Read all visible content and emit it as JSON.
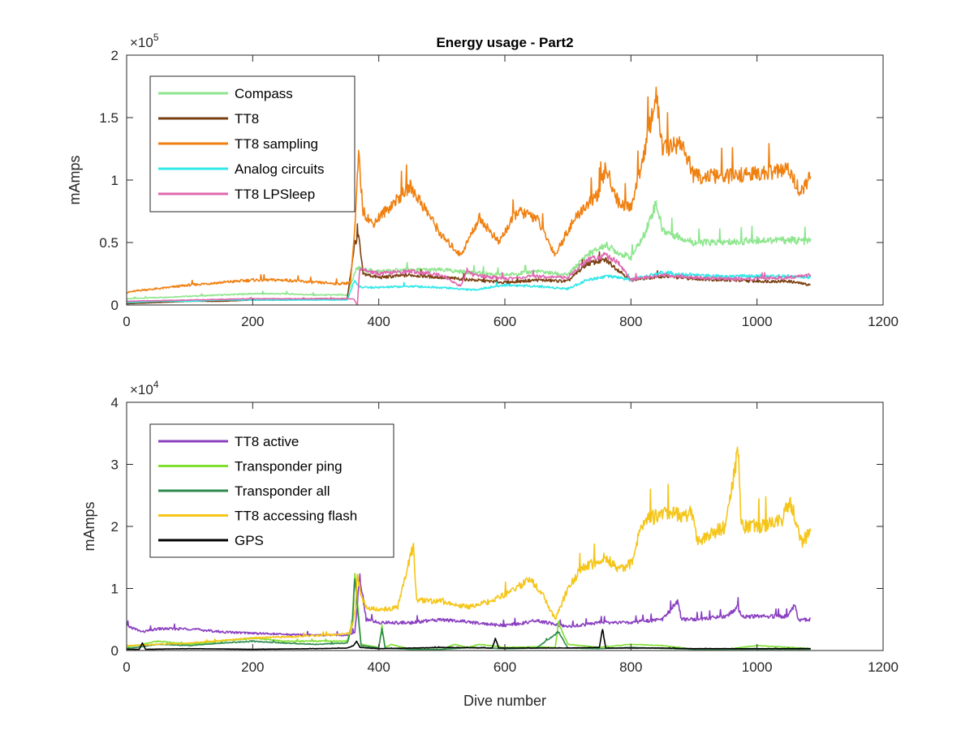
{
  "chart_data": [
    {
      "type": "line",
      "title": "Energy usage - Part2",
      "xlabel": "",
      "ylabel": "mAmps",
      "exponent_label": "×10",
      "exponent_power": "5",
      "scale": 100000,
      "xlim": [
        0,
        1200
      ],
      "ylim": [
        0,
        200000
      ],
      "xticks": [
        0,
        200,
        400,
        600,
        800,
        1000,
        1200
      ],
      "xtick_labels": [
        "0",
        "200",
        "400",
        "600",
        "800",
        "1000",
        "1200"
      ],
      "yticks": [
        0,
        50000,
        100000,
        150000,
        200000
      ],
      "ytick_labels": [
        "0",
        "0.5",
        "1",
        "1.5",
        "2"
      ],
      "grid": false,
      "legend": "top-left",
      "series": [
        {
          "name": "Compass",
          "color": "#8ee68e",
          "x": [
            0,
            50,
            100,
            150,
            200,
            250,
            300,
            350,
            365,
            375,
            400,
            450,
            500,
            550,
            600,
            650,
            700,
            730,
            760,
            780,
            800,
            820,
            840,
            850,
            900,
            950,
            1000,
            1050,
            1085
          ],
          "y": [
            5000,
            6000,
            7000,
            8000,
            9000,
            9000,
            8000,
            8000,
            30000,
            28000,
            27000,
            28000,
            28000,
            26000,
            24000,
            27000,
            24000,
            40000,
            48000,
            42000,
            38000,
            55000,
            82000,
            60000,
            50000,
            50000,
            52000,
            52000,
            51000
          ]
        },
        {
          "name": "TT8",
          "color": "#7a3f10",
          "x": [
            0,
            50,
            100,
            150,
            200,
            250,
            300,
            350,
            362,
            368,
            375,
            400,
            450,
            500,
            550,
            600,
            650,
            700,
            730,
            760,
            780,
            800,
            850,
            900,
            950,
            1000,
            1050,
            1085
          ],
          "y": [
            1000,
            2000,
            3000,
            3000,
            4000,
            4000,
            5000,
            5000,
            50000,
            55000,
            25000,
            22000,
            24000,
            22000,
            20000,
            18000,
            20000,
            19000,
            33000,
            36000,
            28000,
            20000,
            23000,
            21000,
            20000,
            19000,
            19000,
            16000
          ]
        },
        {
          "name": "TT8 sampling",
          "color": "#f08010",
          "x": [
            0,
            25,
            50,
            100,
            150,
            200,
            250,
            300,
            340,
            355,
            362,
            368,
            375,
            390,
            420,
            450,
            480,
            500,
            530,
            560,
            590,
            620,
            650,
            680,
            700,
            720,
            750,
            760,
            780,
            800,
            820,
            840,
            850,
            880,
            900,
            950,
            1000,
            1050,
            1070,
            1085
          ],
          "y": [
            10000,
            12000,
            13000,
            16000,
            18000,
            20000,
            20000,
            18000,
            17000,
            18000,
            60000,
            120000,
            75000,
            65000,
            80000,
            95000,
            72000,
            55000,
            40000,
            70000,
            50000,
            75000,
            70000,
            40000,
            60000,
            75000,
            90000,
            110000,
            82000,
            78000,
            120000,
            168000,
            125000,
            130000,
            103000,
            103000,
            105000,
            108000,
            90000,
            103000
          ]
        },
        {
          "name": "Analog circuits",
          "color": "#30e8e8",
          "x": [
            0,
            50,
            100,
            150,
            200,
            250,
            300,
            350,
            362,
            368,
            375,
            400,
            450,
            500,
            550,
            600,
            650,
            700,
            730,
            760,
            780,
            800,
            850,
            900,
            950,
            1000,
            1050,
            1085
          ],
          "y": [
            2000,
            3000,
            3000,
            4000,
            4000,
            4000,
            4000,
            4000,
            20000,
            15000,
            14000,
            14000,
            15000,
            14000,
            12000,
            16000,
            15000,
            13000,
            20000,
            23000,
            22000,
            20000,
            26000,
            24000,
            23000,
            23000,
            23000,
            22000
          ]
        },
        {
          "name": "TT8 LPSleep",
          "color": "#e068b0",
          "x": [
            0,
            50,
            100,
            150,
            200,
            250,
            300,
            350,
            360,
            366,
            370,
            375,
            400,
            450,
            500,
            530,
            540,
            550,
            600,
            650,
            700,
            730,
            760,
            780,
            800,
            850,
            900,
            950,
            1000,
            1050,
            1085
          ],
          "y": [
            3000,
            3500,
            4000,
            4500,
            5000,
            5000,
            5000,
            5000,
            5000,
            0,
            30000,
            28000,
            25000,
            27000,
            24000,
            15000,
            28000,
            24000,
            21000,
            23000,
            22000,
            36000,
            40000,
            34000,
            20000,
            24000,
            22000,
            21000,
            21000,
            22000,
            24000
          ]
        }
      ]
    },
    {
      "type": "line",
      "title": "",
      "xlabel": "Dive number",
      "ylabel": "mAmps",
      "exponent_label": "×10",
      "exponent_power": "4",
      "scale": 10000,
      "xlim": [
        0,
        1200
      ],
      "ylim": [
        0,
        40000
      ],
      "xticks": [
        0,
        200,
        400,
        600,
        800,
        1000,
        1200
      ],
      "xtick_labels": [
        "0",
        "200",
        "400",
        "600",
        "800",
        "1000",
        "1200"
      ],
      "yticks": [
        0,
        10000,
        20000,
        30000,
        40000
      ],
      "ytick_labels": [
        "0",
        "1",
        "2",
        "3",
        "4"
      ],
      "grid": false,
      "legend": "top-left",
      "series": [
        {
          "name": "TT8 active",
          "color": "#8a40c0",
          "x": [
            0,
            25,
            50,
            100,
            150,
            200,
            250,
            300,
            350,
            362,
            370,
            380,
            400,
            450,
            500,
            550,
            600,
            650,
            700,
            750,
            800,
            850,
            875,
            880,
            900,
            950,
            970,
            975,
            1000,
            1050,
            1060,
            1065,
            1085
          ],
          "y": [
            4000,
            3000,
            3500,
            3500,
            3000,
            2800,
            2600,
            2500,
            2500,
            3000,
            12000,
            5000,
            4500,
            4500,
            5000,
            4500,
            4000,
            4800,
            3800,
            4500,
            4500,
            5000,
            8000,
            5000,
            5000,
            5500,
            7000,
            5500,
            5500,
            5500,
            7500,
            5000,
            5000
          ]
        },
        {
          "name": "Transponder ping",
          "color": "#80e030",
          "x": [
            0,
            50,
            100,
            150,
            200,
            250,
            300,
            350,
            358,
            362,
            366,
            372,
            400,
            405,
            410,
            420,
            450,
            500,
            520,
            540,
            560,
            600,
            650,
            680,
            685,
            700,
            750,
            800,
            850,
            875,
            900,
            950,
            1000,
            1085
          ],
          "y": [
            500,
            1500,
            1000,
            1500,
            2000,
            1500,
            1500,
            1500,
            5000,
            12800,
            8000,
            1000,
            500,
            4000,
            500,
            1000,
            200,
            200,
            1000,
            500,
            1000,
            500,
            600,
            500,
            4500,
            1000,
            500,
            1000,
            800,
            500,
            200,
            200,
            800,
            300
          ]
        },
        {
          "name": "Transponder all",
          "color": "#2e8a4e",
          "x": [
            0,
            50,
            100,
            150,
            200,
            250,
            300,
            350,
            358,
            362,
            366,
            372,
            400,
            405,
            410,
            450,
            500,
            550,
            600,
            650,
            685,
            700,
            750,
            800,
            900,
            1000,
            1085
          ],
          "y": [
            300,
            1000,
            800,
            1200,
            1500,
            1200,
            1000,
            1200,
            4000,
            12000,
            7000,
            800,
            400,
            3500,
            400,
            200,
            200,
            500,
            300,
            400,
            3000,
            400,
            300,
            500,
            200,
            200,
            200
          ]
        },
        {
          "name": "TT8 accessing flash",
          "color": "#f5c518",
          "x": [
            0,
            50,
            100,
            150,
            200,
            250,
            300,
            340,
            355,
            362,
            366,
            372,
            380,
            400,
            430,
            455,
            460,
            480,
            500,
            540,
            560,
            580,
            600,
            640,
            660,
            680,
            700,
            720,
            760,
            780,
            800,
            820,
            850,
            900,
            905,
            950,
            970,
            975,
            1000,
            1040,
            1050,
            1060,
            1070,
            1085
          ],
          "y": [
            800,
            1000,
            1200,
            1600,
            2000,
            2200,
            2400,
            2600,
            2800,
            6000,
            12000,
            9000,
            7000,
            6500,
            7000,
            17000,
            8000,
            8000,
            8000,
            7000,
            7500,
            8000,
            9000,
            11500,
            9000,
            5000,
            10000,
            13000,
            15000,
            13000,
            14000,
            21000,
            22000,
            22000,
            17500,
            20000,
            33000,
            20000,
            20000,
            21000,
            24000,
            22000,
            17500,
            19000
          ]
        },
        {
          "name": "GPS",
          "color": "#000000",
          "x": [
            0,
            20,
            25,
            30,
            100,
            200,
            300,
            350,
            360,
            365,
            370,
            400,
            450,
            500,
            580,
            585,
            590,
            600,
            700,
            750,
            755,
            760,
            800,
            850,
            900,
            1000,
            1085
          ],
          "y": [
            200,
            200,
            1200,
            200,
            300,
            200,
            300,
            400,
            800,
            1500,
            500,
            300,
            400,
            500,
            400,
            2000,
            400,
            400,
            400,
            500,
            3500,
            400,
            400,
            400,
            300,
            300,
            300
          ]
        }
      ]
    }
  ]
}
